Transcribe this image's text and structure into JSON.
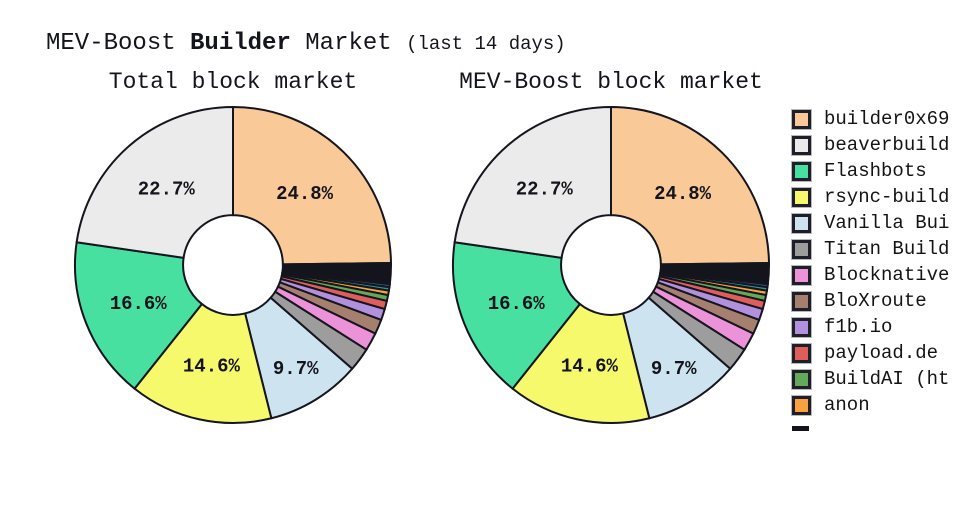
{
  "header": {
    "title_prefix": "MEV-Boost ",
    "title_bold": "Builder",
    "title_suffix": " Market ",
    "title_note": "(last 14 days)"
  },
  "colors": {
    "background": "#FFFFFF",
    "edge": "#15151e",
    "text": "#14141c"
  },
  "legend": {
    "position": "right",
    "items": [
      {
        "label": "builder0x69",
        "color": "#F9C998"
      },
      {
        "label": "beaverbuild",
        "color": "#EBEBEB"
      },
      {
        "label": "Flashbots",
        "color": "#47E0A1"
      },
      {
        "label": "rsync-build",
        "color": "#F6F96B"
      },
      {
        "label": "Vanilla Bui",
        "color": "#CDE3F0"
      },
      {
        "label": "Titan Build",
        "color": "#9D9D9D"
      },
      {
        "label": "Blocknative",
        "color": "#EC92D8"
      },
      {
        "label": "BloXroute",
        "color": "#A5806F"
      },
      {
        "label": "f1b.io",
        "color": "#B191DE"
      },
      {
        "label": "payload.de",
        "color": "#DE5E5C"
      },
      {
        "label": "BuildAI (ht",
        "color": "#63A85B"
      },
      {
        "label": "anon",
        "color": "#F8A13F"
      }
    ],
    "truncated_next_swatch_color": "#14141c"
  },
  "chart_data": [
    {
      "type": "pie",
      "variant": "donut",
      "title": "Total block market",
      "start": "top",
      "direction": "clockwise",
      "hole_ratio": 0.316,
      "slices": [
        {
          "label": "builder0x69",
          "value": 24.8,
          "pct_label": "24.8%",
          "color": "#F9C998"
        },
        {
          "label": "",
          "value": 2.15,
          "color": "#14141C"
        },
        {
          "label": "",
          "value": 0.3,
          "color": "#3A55A4"
        },
        {
          "label": "",
          "value": 0.35,
          "color": "#2C9C8E"
        },
        {
          "label": "anon",
          "value": 0.45,
          "color": "#F8A13F"
        },
        {
          "label": "BuildAI (ht",
          "value": 0.6,
          "color": "#63A85B"
        },
        {
          "label": "payload.de",
          "value": 0.85,
          "color": "#DE5E5C"
        },
        {
          "label": "f1b.io",
          "value": 1.15,
          "color": "#B191DE"
        },
        {
          "label": "BloXroute",
          "value": 1.5,
          "color": "#A5806F"
        },
        {
          "label": "Blocknative",
          "value": 1.85,
          "color": "#EC92D8"
        },
        {
          "label": "Titan Build",
          "value": 2.4,
          "color": "#9D9D9D"
        },
        {
          "label": "Vanilla Bui",
          "value": 9.7,
          "pct_label": "9.7%",
          "color": "#CDE3F0",
          "label_r": 0.76
        },
        {
          "label": "rsync-build",
          "value": 14.6,
          "pct_label": "14.6%",
          "color": "#F6F96B"
        },
        {
          "label": "Flashbots",
          "value": 16.6,
          "pct_label": "16.6%",
          "color": "#47E0A1"
        },
        {
          "label": "beaverbuild",
          "value": 22.7,
          "pct_label": "22.7%",
          "color": "#EBEBEB"
        }
      ]
    },
    {
      "type": "pie",
      "variant": "donut",
      "title": "MEV-Boost block market",
      "start": "top",
      "direction": "clockwise",
      "hole_ratio": 0.316,
      "slices": [
        {
          "label": "builder0x69",
          "value": 24.8,
          "pct_label": "24.8%",
          "color": "#F9C998"
        },
        {
          "label": "",
          "value": 2.15,
          "color": "#14141C"
        },
        {
          "label": "",
          "value": 0.3,
          "color": "#3A55A4"
        },
        {
          "label": "",
          "value": 0.35,
          "color": "#2C9C8E"
        },
        {
          "label": "anon",
          "value": 0.45,
          "color": "#F8A13F"
        },
        {
          "label": "BuildAI (ht",
          "value": 0.6,
          "color": "#63A85B"
        },
        {
          "label": "payload.de",
          "value": 0.85,
          "color": "#DE5E5C"
        },
        {
          "label": "f1b.io",
          "value": 1.15,
          "color": "#B191DE"
        },
        {
          "label": "BloXroute",
          "value": 1.5,
          "color": "#A5806F"
        },
        {
          "label": "Blocknative",
          "value": 1.85,
          "color": "#EC92D8"
        },
        {
          "label": "Titan Build",
          "value": 2.4,
          "color": "#9D9D9D"
        },
        {
          "label": "Vanilla Bui",
          "value": 9.7,
          "pct_label": "9.7%",
          "color": "#CDE3F0",
          "label_r": 0.76
        },
        {
          "label": "rsync-build",
          "value": 14.6,
          "pct_label": "14.6%",
          "color": "#F6F96B"
        },
        {
          "label": "Flashbots",
          "value": 16.6,
          "pct_label": "16.6%",
          "color": "#47E0A1"
        },
        {
          "label": "beaverbuild",
          "value": 22.7,
          "pct_label": "22.7%",
          "color": "#EBEBEB"
        }
      ]
    }
  ]
}
